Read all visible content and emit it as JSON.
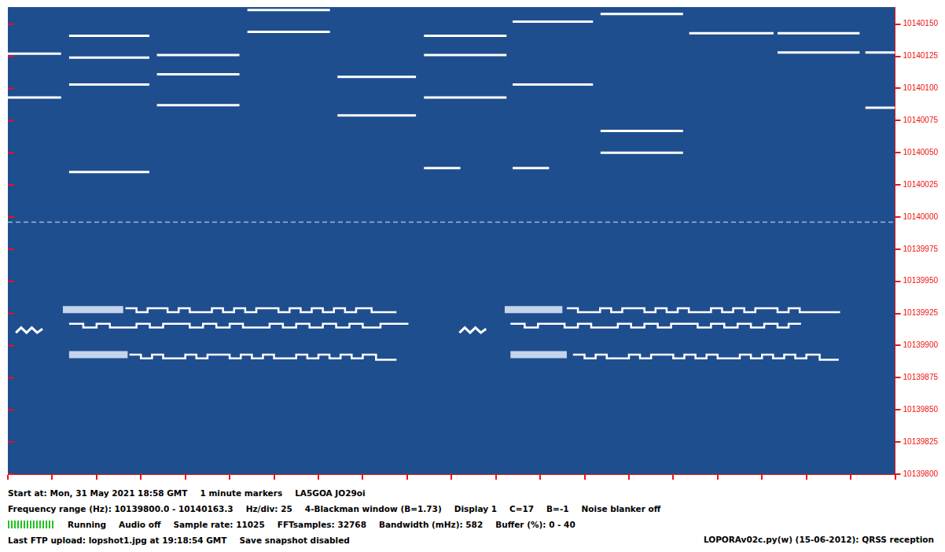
{
  "chart_data": {
    "type": "spectrogram",
    "xlim": [
      0,
      20
    ],
    "xticks": [
      0,
      1,
      2,
      3,
      4,
      5,
      6,
      7,
      8,
      9,
      10,
      11,
      12,
      13,
      14,
      15,
      16,
      17,
      18,
      19,
      20
    ],
    "ylim": [
      10139800,
      10140163.3
    ],
    "yticks": [
      10139800,
      10139825,
      10139850,
      10139875,
      10139900,
      10139925,
      10139950,
      10139975,
      10140000,
      10140025,
      10140050,
      10140075,
      10140100,
      10140125,
      10140150
    ],
    "grid": false,
    "tick_labels": "y",
    "footer": {
      "lines": [
        [
          "Start at: Mon, 31 May 2021 18:58 GMT",
          "1 minute markers",
          "LA5GOA JO29oi"
        ],
        [
          "Frequency range (Hz): 10139800.0 - 10140163.3",
          "Hz/div: 25",
          "4-Blackman window (B=1.73)",
          "Display 1",
          "C=17",
          "B=-1",
          "Noise blanker off"
        ],
        [
          "Running",
          "Audio off",
          "Sample rate: 11025",
          "FFTsamples: 32768",
          "Bandwidth (mHz): 582",
          "Buffer (%): 0 - 40"
        ],
        [
          "Last FTP upload: lopshot1.jpg at 19:18:54 GMT",
          "Save snapshot disabled"
        ]
      ],
      "right": "LOPORAv02c.py(w) (15-06-2012): QRSS reception"
    },
    "series": [
      {
        "color": "#9db8dd",
        "line_style": "dashed",
        "x": [
          0,
          20
        ],
        "values": [
          10139996,
          10139996
        ]
      },
      {
        "color": "#ffffff",
        "line_style": "solid",
        "x": [
          0,
          1.2
        ],
        "values": [
          10140127,
          10140127
        ]
      },
      {
        "color": "#ffffff",
        "line_style": "solid",
        "x": [
          0,
          1.2
        ],
        "values": [
          10140093,
          10140093
        ]
      },
      {
        "color": "#ffffff",
        "line_style": "solid",
        "x": [
          1.38,
          3.19
        ],
        "values": [
          10140141,
          10140141
        ]
      },
      {
        "color": "#ffffff",
        "line_style": "solid",
        "x": [
          1.38,
          3.19
        ],
        "values": [
          10140124,
          10140124
        ]
      },
      {
        "color": "#ffffff",
        "line_style": "solid",
        "x": [
          1.38,
          3.19
        ],
        "values": [
          10140103,
          10140103
        ]
      },
      {
        "color": "#ffffff",
        "line_style": "solid",
        "x": [
          1.38,
          3.19
        ],
        "values": [
          10140035,
          10140035
        ]
      },
      {
        "color": "#ffffff",
        "line_style": "solid",
        "x": [
          3.36,
          5.22
        ],
        "values": [
          10140126,
          10140126
        ]
      },
      {
        "color": "#ffffff",
        "line_style": "solid",
        "x": [
          3.36,
          5.22
        ],
        "values": [
          10140111,
          10140111
        ]
      },
      {
        "color": "#ffffff",
        "line_style": "solid",
        "x": [
          3.36,
          5.22
        ],
        "values": [
          10140087,
          10140087
        ]
      },
      {
        "color": "#ffffff",
        "line_style": "solid",
        "x": [
          5.4,
          7.26
        ],
        "values": [
          10140161,
          10140161
        ]
      },
      {
        "color": "#ffffff",
        "line_style": "solid",
        "x": [
          5.4,
          7.26
        ],
        "values": [
          10140144,
          10140144
        ]
      },
      {
        "color": "#ffffff",
        "line_style": "solid",
        "x": [
          7.43,
          9.2
        ],
        "values": [
          10140109,
          10140109
        ]
      },
      {
        "color": "#ffffff",
        "line_style": "solid",
        "x": [
          7.43,
          9.2
        ],
        "values": [
          10140079,
          10140079
        ]
      },
      {
        "color": "#ffffff",
        "line_style": "solid",
        "x": [
          9.38,
          11.24
        ],
        "values": [
          10140141,
          10140141
        ]
      },
      {
        "color": "#ffffff",
        "line_style": "solid",
        "x": [
          9.38,
          11.24
        ],
        "values": [
          10140126,
          10140126
        ]
      },
      {
        "color": "#ffffff",
        "line_style": "solid",
        "x": [
          9.38,
          11.24
        ],
        "values": [
          10140093,
          10140093
        ]
      },
      {
        "color": "#ffffff",
        "line_style": "solid",
        "x": [
          9.38,
          10.2
        ],
        "values": [
          10140038,
          10140038
        ]
      },
      {
        "color": "#ffffff",
        "line_style": "solid",
        "x": [
          11.38,
          13.19
        ],
        "values": [
          10140152,
          10140152
        ]
      },
      {
        "color": "#ffffff",
        "line_style": "solid",
        "x": [
          11.38,
          13.19
        ],
        "values": [
          10140103,
          10140103
        ]
      },
      {
        "color": "#ffffff",
        "line_style": "solid",
        "x": [
          11.38,
          12.2
        ],
        "values": [
          10140038,
          10140038
        ]
      },
      {
        "color": "#ffffff",
        "line_style": "solid",
        "x": [
          13.36,
          15.22
        ],
        "values": [
          10140158,
          10140158
        ]
      },
      {
        "color": "#ffffff",
        "line_style": "solid",
        "x": [
          13.36,
          15.22
        ],
        "values": [
          10140067,
          10140067
        ]
      },
      {
        "color": "#ffffff",
        "line_style": "solid",
        "x": [
          13.36,
          15.22
        ],
        "values": [
          10140050,
          10140050
        ]
      },
      {
        "color": "#ffffff",
        "line_style": "solid",
        "x": [
          15.36,
          17.26
        ],
        "values": [
          10140143,
          10140143
        ]
      },
      {
        "color": "#ffffff",
        "line_style": "solid",
        "x": [
          17.35,
          19.2
        ],
        "values": [
          10140143,
          10140143
        ]
      },
      {
        "color": "#ffffff",
        "line_style": "solid",
        "x": [
          17.35,
          19.2
        ],
        "values": [
          10140128,
          10140128
        ]
      },
      {
        "color": "#ffffff",
        "line_style": "solid",
        "x": [
          19.33,
          20
        ],
        "values": [
          10140128,
          10140128
        ]
      },
      {
        "color": "#ffffff",
        "line_style": "solid",
        "x": [
          19.33,
          20
        ],
        "values": [
          10140085,
          10140085
        ]
      },
      {
        "color": "#c4d4ec",
        "line_style": "bold",
        "x": [
          1.24,
          2.6
        ],
        "values": [
          10139928,
          10139928
        ]
      },
      {
        "color": "#c4d4ec",
        "line_style": "bold",
        "x": [
          1.38,
          2.7
        ],
        "values": [
          10139893,
          10139893
        ]
      },
      {
        "color": "#c4d4ec",
        "line_style": "bold",
        "x": [
          11.2,
          12.5
        ],
        "values": [
          10139928,
          10139928
        ]
      },
      {
        "color": "#c4d4ec",
        "line_style": "bold",
        "x": [
          11.33,
          12.6
        ],
        "values": [
          10139893,
          10139893
        ]
      },
      {
        "color": "#ffffff",
        "line_style": "solid",
        "x": [
          0.18,
          0.3,
          0.42,
          0.54,
          0.66,
          0.78,
          0.78,
          10.18,
          10.3,
          10.42,
          10.54,
          10.66,
          10.78
        ],
        "values": [
          10139910,
          10139914,
          10139910,
          10139914,
          10139910,
          10139913,
          null,
          10139910,
          10139914,
          10139910,
          10139914,
          10139910,
          10139913
        ]
      },
      {
        "color": "#ffffff",
        "line_style": "steps",
        "x": [
          2.65,
          2.9,
          3.15,
          3.4,
          3.6,
          3.85,
          4.1,
          4.35,
          4.6,
          4.85,
          5.1,
          5.35,
          5.6,
          5.85,
          6.1,
          6.35,
          6.6,
          6.85,
          7.1,
          7.35,
          7.6,
          7.85,
          8.2,
          8.76,
          8.76,
          12.6,
          12.85,
          13.1,
          13.35,
          13.6,
          13.85,
          14.1,
          14.35,
          14.6,
          14.85,
          15.1,
          15.35,
          15.6,
          15.85,
          16.1,
          16.35,
          16.6,
          16.85,
          17.1,
          17.35,
          17.6,
          17.85,
          18.2,
          18.76
        ],
        "values": [
          10139929,
          10139926,
          10139929,
          10139929,
          10139926,
          10139929,
          10139926,
          10139926,
          10139929,
          10139926,
          10139929,
          10139926,
          10139929,
          10139929,
          10139926,
          10139929,
          10139926,
          10139929,
          10139926,
          10139929,
          10139926,
          10139929,
          10139926,
          10139926,
          null,
          10139929,
          10139926,
          10139926,
          10139929,
          10139926,
          10139929,
          10139929,
          10139926,
          10139929,
          10139926,
          10139929,
          10139926,
          10139926,
          10139929,
          10139926,
          10139929,
          10139926,
          10139929,
          10139929,
          10139926,
          10139929,
          10139926,
          10139926,
          10139926
        ]
      },
      {
        "color": "#ffffff",
        "line_style": "steps",
        "x": [
          1.38,
          1.7,
          2.0,
          2.3,
          2.6,
          2.9,
          3.2,
          3.5,
          3.8,
          4.1,
          4.4,
          4.7,
          5.0,
          5.3,
          5.6,
          5.9,
          6.2,
          6.5,
          6.8,
          7.1,
          7.4,
          7.7,
          8.0,
          8.4,
          9.03,
          9.03,
          11.33,
          11.65,
          11.95,
          12.25,
          12.55,
          12.85,
          13.15,
          13.45,
          13.75,
          14.05,
          14.35,
          14.65,
          14.95,
          15.25,
          15.55,
          15.85,
          16.15,
          16.45,
          16.75,
          17.05,
          17.35,
          17.6,
          17.88
        ],
        "values": [
          10139917,
          10139914,
          10139917,
          10139914,
          10139914,
          10139917,
          10139914,
          10139917,
          10139917,
          10139914,
          10139917,
          10139914,
          10139917,
          10139914,
          10139914,
          10139917,
          10139914,
          10139917,
          10139914,
          10139917,
          10139914,
          10139917,
          10139914,
          10139917,
          10139917,
          null,
          10139917,
          10139914,
          10139917,
          10139917,
          10139914,
          10139917,
          10139914,
          10139914,
          10139917,
          10139914,
          10139917,
          10139914,
          10139917,
          10139917,
          10139914,
          10139917,
          10139914,
          10139917,
          10139914,
          10139917,
          10139914,
          10139917,
          10139917
        ]
      },
      {
        "color": "#ffffff",
        "line_style": "steps",
        "x": [
          2.74,
          3.0,
          3.25,
          3.5,
          3.75,
          4.0,
          4.25,
          4.5,
          4.75,
          5.0,
          5.25,
          5.5,
          5.75,
          6.0,
          6.25,
          6.5,
          6.75,
          7.0,
          7.25,
          7.5,
          7.75,
          8.0,
          8.3,
          8.76,
          8.76,
          12.74,
          13.0,
          13.25,
          13.5,
          13.75,
          14.0,
          14.25,
          14.5,
          14.75,
          15.0,
          15.25,
          15.5,
          15.75,
          16.0,
          16.25,
          16.5,
          16.75,
          17.0,
          17.25,
          17.5,
          17.75,
          18.0,
          18.3,
          18.73
        ],
        "values": [
          10139893,
          10139890,
          10139893,
          10139890,
          10139890,
          10139893,
          10139890,
          10139893,
          10139893,
          10139890,
          10139893,
          10139890,
          10139893,
          10139890,
          10139890,
          10139893,
          10139890,
          10139893,
          10139890,
          10139893,
          10139890,
          10139893,
          10139889,
          10139889,
          null,
          10139893,
          10139890,
          10139893,
          10139890,
          10139890,
          10139893,
          10139890,
          10139893,
          10139893,
          10139890,
          10139893,
          10139890,
          10139893,
          10139890,
          10139890,
          10139893,
          10139890,
          10139893,
          10139890,
          10139893,
          10139890,
          10139893,
          10139889,
          10139889
        ]
      }
    ]
  }
}
